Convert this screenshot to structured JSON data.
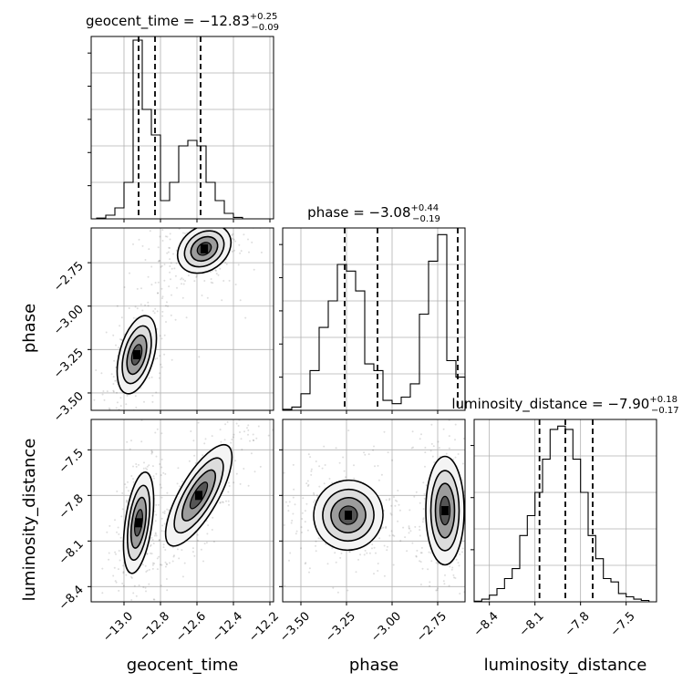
{
  "chart_data": {
    "type": "corner",
    "parameters": [
      "geocent_time",
      "phase",
      "luminosity_distance"
    ],
    "grid": true,
    "panels": [
      {
        "kind": "histogram",
        "parameter": "geocent_time",
        "title": {
          "main": "geocent_time = −12.83",
          "sup": "+0.25",
          "sub": "−0.09"
        },
        "xlim": [
          -13.18,
          -12.18
        ],
        "ylim": [
          0,
          0.5
        ],
        "bin_edges": [
          -13.15,
          -13.1,
          -13.05,
          -13.0,
          -12.95,
          -12.9,
          -12.85,
          -12.8,
          -12.75,
          -12.7,
          -12.65,
          -12.6,
          -12.55,
          -12.5,
          -12.45,
          -12.4,
          -12.35
        ],
        "counts": [
          0.002,
          0.01,
          0.03,
          0.1,
          0.49,
          0.3,
          0.23,
          0.05,
          0.1,
          0.2,
          0.215,
          0.2,
          0.1,
          0.05,
          0.015,
          0.004
        ],
        "quantiles": [
          -12.92,
          -12.83,
          -12.58
        ]
      },
      {
        "kind": "histogram",
        "parameter": "phase",
        "title": {
          "main": "phase = −3.08",
          "sup": "+0.44",
          "sub": "−0.19"
        },
        "xlim": [
          -3.6,
          -2.6
        ],
        "ylim": [
          0,
          0.55
        ],
        "bin_edges": [
          -3.6,
          -3.55,
          -3.5,
          -3.45,
          -3.4,
          -3.35,
          -3.3,
          -3.25,
          -3.2,
          -3.15,
          -3.1,
          -3.05,
          -3.0,
          -2.95,
          -2.9,
          -2.85,
          -2.8,
          -2.75,
          -2.7,
          -2.65,
          -2.6
        ],
        "counts": [
          0.003,
          0.01,
          0.05,
          0.12,
          0.25,
          0.33,
          0.44,
          0.42,
          0.36,
          0.14,
          0.12,
          0.03,
          0.02,
          0.04,
          0.08,
          0.29,
          0.45,
          0.53,
          0.15,
          0.1
        ],
        "quantiles": [
          -3.26,
          -3.08,
          -2.64
        ]
      },
      {
        "kind": "histogram",
        "parameter": "luminosity_distance",
        "title": {
          "main": "luminosity_distance = −7.90",
          "sup": "+0.18",
          "sub": "−0.17"
        },
        "xlim": [
          -8.5,
          -7.3
        ],
        "ylim": [
          0,
          0.55
        ],
        "bin_edges": [
          -8.5,
          -8.45,
          -8.4,
          -8.35,
          -8.3,
          -8.25,
          -8.2,
          -8.15,
          -8.1,
          -8.05,
          -8.0,
          -7.95,
          -7.9,
          -7.85,
          -7.8,
          -7.75,
          -7.7,
          -7.65,
          -7.6,
          -7.55,
          -7.5,
          -7.45,
          -7.4,
          -7.35
        ],
        "counts": [
          0.002,
          0.008,
          0.02,
          0.04,
          0.07,
          0.1,
          0.2,
          0.26,
          0.33,
          0.43,
          0.52,
          0.53,
          0.52,
          0.43,
          0.33,
          0.2,
          0.13,
          0.07,
          0.06,
          0.025,
          0.015,
          0.008,
          0.004
        ],
        "quantiles": [
          -8.07,
          -7.9,
          -7.72
        ]
      },
      {
        "kind": "density",
        "x": "geocent_time",
        "y": "phase",
        "xlim": [
          -13.18,
          -12.18
        ],
        "ylim": [
          -3.6,
          -2.55
        ],
        "modes": [
          {
            "cx": -12.93,
            "cy": -3.28,
            "sx": 0.045,
            "sy": 0.11,
            "rot": -15,
            "weight": 1.0
          },
          {
            "cx": -12.56,
            "cy": -2.67,
            "sx": 0.075,
            "sy": 0.06,
            "rot": 35,
            "weight": 0.9
          }
        ]
      },
      {
        "kind": "density",
        "x": "geocent_time",
        "y": "luminosity_distance",
        "xlim": [
          -13.18,
          -12.18
        ],
        "ylim": [
          -8.5,
          -7.3
        ],
        "modes": [
          {
            "cx": -12.92,
            "cy": -7.98,
            "sx": 0.035,
            "sy": 0.16,
            "rot": -8,
            "weight": 1.0
          },
          {
            "cx": -12.59,
            "cy": -7.8,
            "sx": 0.05,
            "sy": 0.18,
            "rot": -30,
            "weight": 0.9
          }
        ]
      },
      {
        "kind": "density",
        "x": "phase",
        "y": "luminosity_distance",
        "xlim": [
          -3.6,
          -2.6
        ],
        "ylim": [
          -8.5,
          -7.3
        ],
        "modes": [
          {
            "cx": -3.24,
            "cy": -7.93,
            "sx": 0.09,
            "sy": 0.11,
            "rot": -30,
            "weight": 1.0
          },
          {
            "cx": -2.71,
            "cy": -7.9,
            "sx": 0.05,
            "sy": 0.17,
            "rot": 0,
            "weight": 0.9
          }
        ]
      }
    ],
    "ticks": {
      "geocent_time": [
        {
          "v": -13.0,
          "l": "−13.0"
        },
        {
          "v": -12.8,
          "l": "−12.8"
        },
        {
          "v": -12.6,
          "l": "−12.6"
        },
        {
          "v": -12.4,
          "l": "−12.4"
        },
        {
          "v": -12.2,
          "l": "−12.2"
        }
      ],
      "phase": [
        {
          "v": -3.5,
          "l": "−3.50"
        },
        {
          "v": -3.25,
          "l": "−3.25"
        },
        {
          "v": -3.0,
          "l": "−3.00"
        },
        {
          "v": -2.75,
          "l": "−2.75"
        }
      ],
      "luminosity_distance": [
        {
          "v": -8.4,
          "l": "−8.4"
        },
        {
          "v": -8.1,
          "l": "−8.1"
        },
        {
          "v": -7.8,
          "l": "−7.8"
        },
        {
          "v": -7.5,
          "l": "−7.5"
        }
      ]
    },
    "xlabels": [
      "geocent_time",
      "phase",
      "luminosity_distance"
    ],
    "ylabels": [
      "phase",
      "luminosity_distance"
    ]
  }
}
